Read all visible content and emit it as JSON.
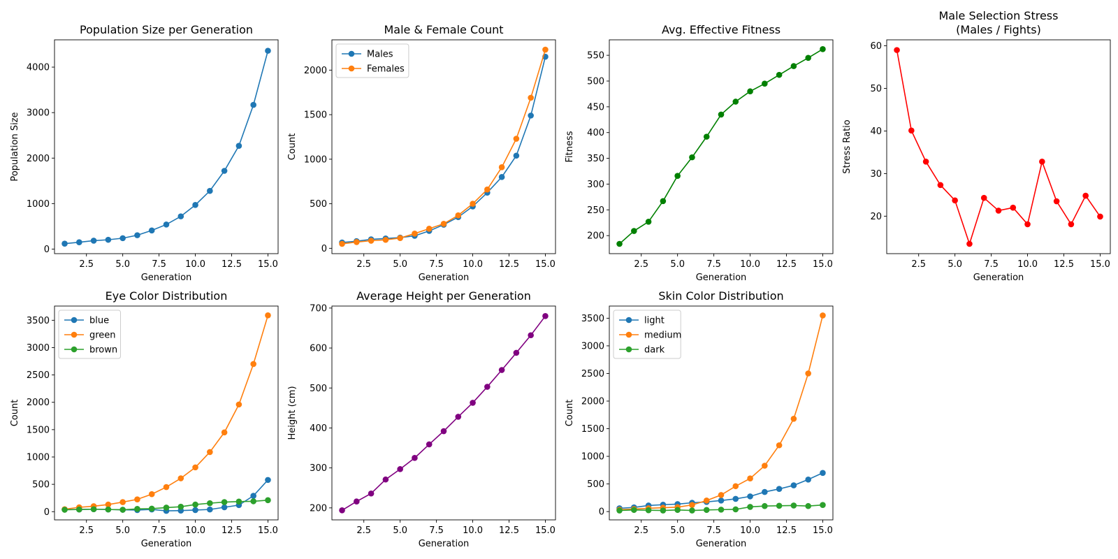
{
  "colors": {
    "tab_blue": "#1f77b4",
    "tab_orange": "#ff7f0e",
    "tab_green": "#2ca02c",
    "green": "#008000",
    "red": "#ff0000",
    "purple": "#800080"
  },
  "chart_data": [
    {
      "id": "population",
      "type": "line",
      "title": "Population Size per Generation",
      "xlabel": "Generation",
      "ylabel": "Population Size",
      "xlim": [
        0.3,
        15.7
      ],
      "ylim": [
        -100,
        4600
      ],
      "xticks": [
        2.5,
        5.0,
        7.5,
        10.0,
        12.5,
        15.0
      ],
      "xtick_labels": [
        "2.5",
        "5.0",
        "7.5",
        "10.0",
        "12.5",
        "15.0"
      ],
      "yticks": [
        0,
        1000,
        2000,
        3000,
        4000
      ],
      "ytick_labels": [
        "0",
        "1000",
        "2000",
        "3000",
        "4000"
      ],
      "legend": "",
      "x": [
        1,
        2,
        3,
        4,
        5,
        6,
        7,
        8,
        9,
        10,
        11,
        12,
        13,
        14,
        15
      ],
      "series": [
        {
          "color": "#1f77b4",
          "values": [
            120,
            150,
            185,
            205,
            240,
            305,
            410,
            540,
            720,
            970,
            1280,
            1720,
            2270,
            3170,
            4360
          ]
        }
      ]
    },
    {
      "id": "sex-count",
      "type": "line",
      "title": "Male & Female Count",
      "xlabel": "Generation",
      "ylabel": "Count",
      "xlim": [
        0.3,
        15.7
      ],
      "ylim": [
        -60,
        2340
      ],
      "xticks": [
        2.5,
        5.0,
        7.5,
        10.0,
        12.5,
        15.0
      ],
      "xtick_labels": [
        "2.5",
        "5.0",
        "7.5",
        "10.0",
        "12.5",
        "15.0"
      ],
      "yticks": [
        0,
        500,
        1000,
        1500,
        2000
      ],
      "ytick_labels": [
        "0",
        "500",
        "1000",
        "1500",
        "2000"
      ],
      "legend": "upper-left",
      "x": [
        1,
        2,
        3,
        4,
        5,
        6,
        7,
        8,
        9,
        10,
        11,
        12,
        13,
        14,
        15
      ],
      "series": [
        {
          "name": "Males",
          "color": "#1f77b4",
          "values": [
            65,
            80,
            100,
            110,
            120,
            140,
            195,
            265,
            350,
            470,
            625,
            800,
            1040,
            1490,
            2150
          ]
        },
        {
          "name": "Females",
          "color": "#ff7f0e",
          "values": [
            50,
            70,
            85,
            95,
            115,
            165,
            220,
            275,
            370,
            500,
            660,
            910,
            1230,
            1690,
            2230
          ]
        }
      ]
    },
    {
      "id": "fitness",
      "type": "line",
      "title": "Avg. Effective Fitness",
      "xlabel": "Generation",
      "ylabel": "Fitness",
      "xlim": [
        0.3,
        15.7
      ],
      "ylim": [
        165,
        580
      ],
      "xticks": [
        2.5,
        5.0,
        7.5,
        10.0,
        12.5,
        15.0
      ],
      "xtick_labels": [
        "2.5",
        "5.0",
        "7.5",
        "10.0",
        "12.5",
        "15.0"
      ],
      "yticks": [
        200,
        250,
        300,
        350,
        400,
        450,
        500,
        550
      ],
      "ytick_labels": [
        "200",
        "250",
        "300",
        "350",
        "400",
        "450",
        "500",
        "550"
      ],
      "legend": "",
      "x": [
        1,
        2,
        3,
        4,
        5,
        6,
        7,
        8,
        9,
        10,
        11,
        12,
        13,
        14,
        15
      ],
      "series": [
        {
          "color": "#008000",
          "values": [
            184,
            209,
            227,
            267,
            316,
            352,
            392,
            435,
            460,
            480,
            495,
            512,
            529,
            545,
            562
          ]
        }
      ]
    },
    {
      "id": "stress",
      "type": "line",
      "title": "Male Selection Stress",
      "subtitle": "(Males / Fights)",
      "xlabel": "Generation",
      "ylabel": "Stress Ratio",
      "xlim": [
        0.3,
        15.7
      ],
      "ylim": [
        11.2,
        61.4
      ],
      "xticks": [
        2.5,
        5.0,
        7.5,
        10.0,
        12.5,
        15.0
      ],
      "xtick_labels": [
        "2.5",
        "5.0",
        "7.5",
        "10.0",
        "12.5",
        "15.0"
      ],
      "yticks": [
        20,
        30,
        40,
        50,
        60
      ],
      "ytick_labels": [
        "20",
        "30",
        "40",
        "50",
        "60"
      ],
      "legend": "",
      "x": [
        1,
        2,
        3,
        4,
        5,
        6,
        7,
        8,
        9,
        10,
        11,
        12,
        13,
        14,
        15
      ],
      "series": [
        {
          "color": "#ff0000",
          "values": [
            59.0,
            40.1,
            32.8,
            27.3,
            23.7,
            13.5,
            24.3,
            21.3,
            22.0,
            18.1,
            32.8,
            23.5,
            18.1,
            24.8,
            19.9
          ]
        }
      ]
    },
    {
      "id": "eye-color",
      "type": "line",
      "title": "Eye Color Distribution",
      "xlabel": "Generation",
      "ylabel": "Count",
      "xlim": [
        0.3,
        15.7
      ],
      "ylim": [
        -150,
        3760
      ],
      "xticks": [
        2.5,
        5.0,
        7.5,
        10.0,
        12.5,
        15.0
      ],
      "xtick_labels": [
        "2.5",
        "5.0",
        "7.5",
        "10.0",
        "12.5",
        "15.0"
      ],
      "yticks": [
        0,
        500,
        1000,
        1500,
        2000,
        2500,
        3000,
        3500
      ],
      "ytick_labels": [
        "0",
        "500",
        "1000",
        "1500",
        "2000",
        "2500",
        "3000",
        "3500"
      ],
      "legend": "upper-left",
      "x": [
        1,
        2,
        3,
        4,
        5,
        6,
        7,
        8,
        9,
        10,
        11,
        12,
        13,
        14,
        15
      ],
      "series": [
        {
          "name": "blue",
          "color": "#1f77b4",
          "values": [
            40,
            40,
            45,
            40,
            35,
            30,
            40,
            15,
            20,
            30,
            40,
            80,
            120,
            290,
            580
          ]
        },
        {
          "name": "green",
          "color": "#ff7f0e",
          "values": [
            45,
            80,
            100,
            130,
            175,
            225,
            320,
            450,
            610,
            810,
            1090,
            1450,
            1960,
            2700,
            3590
          ]
        },
        {
          "name": "brown",
          "color": "#2ca02c",
          "values": [
            35,
            40,
            45,
            40,
            35,
            50,
            55,
            75,
            90,
            130,
            155,
            175,
            185,
            190,
            210
          ]
        }
      ]
    },
    {
      "id": "height",
      "type": "line",
      "title": "Average Height per Generation",
      "xlabel": "Generation",
      "ylabel": "Height (cm)",
      "xlim": [
        0.3,
        15.7
      ],
      "ylim": [
        170,
        705
      ],
      "xticks": [
        2.5,
        5.0,
        7.5,
        10.0,
        12.5,
        15.0
      ],
      "xtick_labels": [
        "2.5",
        "5.0",
        "7.5",
        "10.0",
        "12.5",
        "15.0"
      ],
      "yticks": [
        200,
        300,
        400,
        500,
        600,
        700
      ],
      "ytick_labels": [
        "200",
        "300",
        "400",
        "500",
        "600",
        "700"
      ],
      "legend": "",
      "x": [
        1,
        2,
        3,
        4,
        5,
        6,
        7,
        8,
        9,
        10,
        11,
        12,
        13,
        14,
        15
      ],
      "series": [
        {
          "color": "#800080",
          "values": [
            194,
            216,
            236,
            271,
            297,
            325,
            359,
            392,
            428,
            463,
            503,
            545,
            588,
            632,
            680
          ]
        }
      ]
    },
    {
      "id": "skin-color",
      "type": "line",
      "title": "Skin Color Distribution",
      "xlabel": "Generation",
      "ylabel": "Count",
      "xlim": [
        0.3,
        15.7
      ],
      "ylim": [
        -150,
        3720
      ],
      "xticks": [
        2.5,
        5.0,
        7.5,
        10.0,
        12.5,
        15.0
      ],
      "xtick_labels": [
        "2.5",
        "5.0",
        "7.5",
        "10.0",
        "12.5",
        "15.0"
      ],
      "yticks": [
        0,
        500,
        1000,
        1500,
        2000,
        2500,
        3000,
        3500
      ],
      "ytick_labels": [
        "0",
        "500",
        "1000",
        "1500",
        "2000",
        "2500",
        "3000",
        "3500"
      ],
      "legend": "upper-left",
      "x": [
        1,
        2,
        3,
        4,
        5,
        6,
        7,
        8,
        9,
        10,
        11,
        12,
        13,
        14,
        15
      ],
      "series": [
        {
          "name": "light",
          "color": "#1f77b4",
          "values": [
            60,
            75,
            110,
            125,
            135,
            160,
            175,
            200,
            230,
            275,
            355,
            410,
            475,
            580,
            700
          ]
        },
        {
          "name": "medium",
          "color": "#ff7f0e",
          "values": [
            35,
            45,
            60,
            70,
            80,
            120,
            200,
            300,
            460,
            600,
            830,
            1200,
            1680,
            2500,
            3550
          ]
        },
        {
          "name": "dark",
          "color": "#2ca02c",
          "values": [
            20,
            30,
            25,
            20,
            30,
            20,
            30,
            35,
            40,
            85,
            100,
            105,
            110,
            100,
            120
          ]
        }
      ]
    }
  ]
}
